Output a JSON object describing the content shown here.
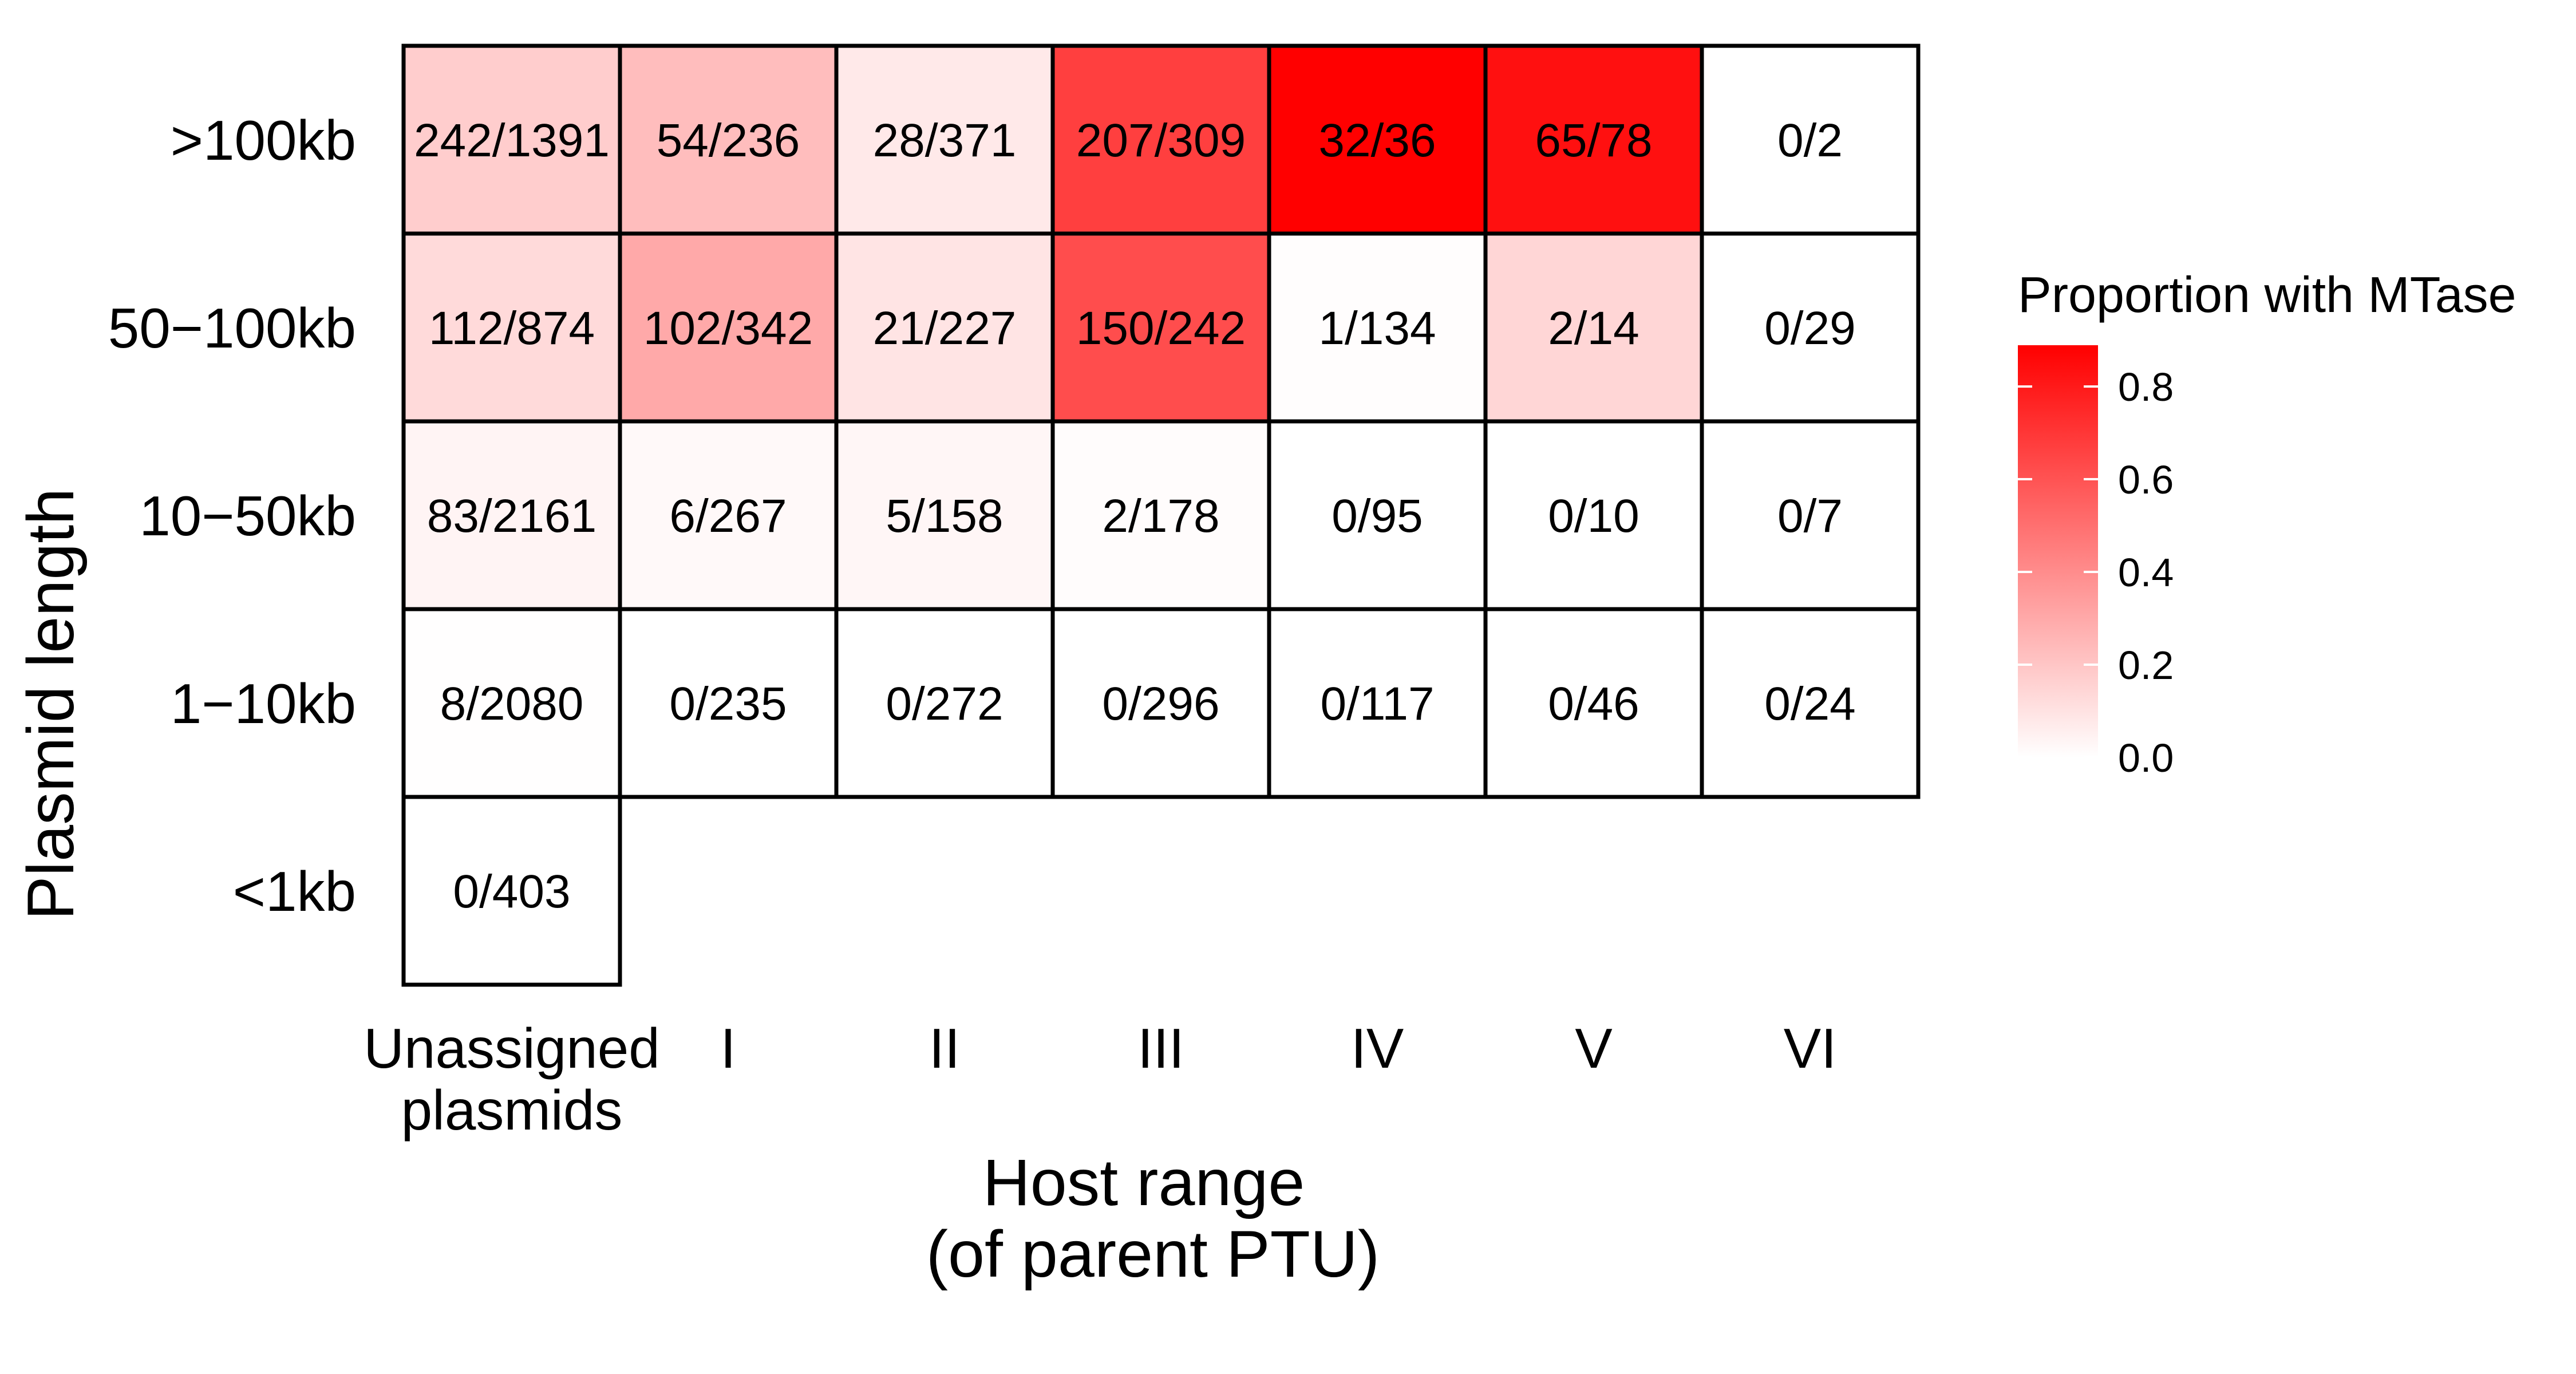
{
  "chart_data": {
    "type": "heatmap",
    "xlabel": [
      "Host range",
      "(of parent PTU)"
    ],
    "ylabel": "Plasmid length",
    "columns": [
      [
        "Unassigned",
        "plasmids"
      ],
      [
        "I"
      ],
      [
        "II"
      ],
      [
        "III"
      ],
      [
        "IV"
      ],
      [
        "V"
      ],
      [
        "VI"
      ]
    ],
    "rows": [
      ">100kb",
      "50−100kb",
      "10−50kb",
      "1−10kb",
      "<1kb"
    ],
    "cells": [
      [
        [
          242,
          1391
        ],
        [
          54,
          236
        ],
        [
          28,
          371
        ],
        [
          207,
          309
        ],
        [
          32,
          36
        ],
        [
          65,
          78
        ],
        [
          0,
          2
        ]
      ],
      [
        [
          112,
          874
        ],
        [
          102,
          342
        ],
        [
          21,
          227
        ],
        [
          150,
          242
        ],
        [
          1,
          134
        ],
        [
          2,
          14
        ],
        [
          0,
          29
        ]
      ],
      [
        [
          83,
          2161
        ],
        [
          6,
          267
        ],
        [
          5,
          158
        ],
        [
          2,
          178
        ],
        [
          0,
          95
        ],
        [
          0,
          10
        ],
        [
          0,
          7
        ]
      ],
      [
        [
          8,
          2080
        ],
        [
          0,
          235
        ],
        [
          0,
          272
        ],
        [
          0,
          296
        ],
        [
          0,
          117
        ],
        [
          0,
          46
        ],
        [
          0,
          24
        ]
      ],
      [
        [
          0,
          403
        ],
        null,
        null,
        null,
        null,
        null,
        null
      ]
    ],
    "legend": {
      "title": "Proportion with MTase",
      "ticks": [
        "0.0",
        "0.2",
        "0.4",
        "0.6",
        "0.8"
      ],
      "range": [
        0,
        0.889
      ],
      "color_low": "#ffffff",
      "color_high": "#ff0000"
    }
  }
}
